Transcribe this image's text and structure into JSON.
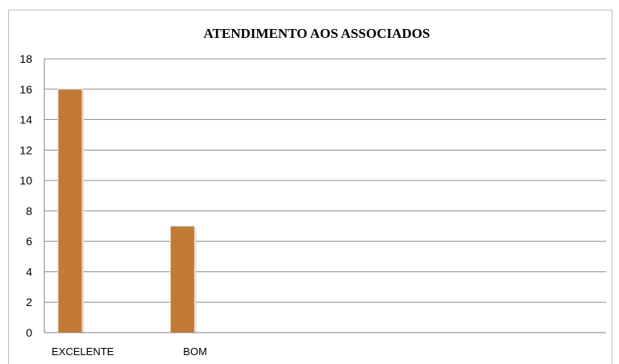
{
  "chart_data": {
    "type": "bar",
    "title": "ATENDIMENTO AOS ASSOCIADOS",
    "xlabel": "",
    "ylabel": "",
    "categories": [
      "EXCELENTE",
      "BOM",
      "",
      "",
      ""
    ],
    "values": [
      16,
      7,
      0,
      0,
      0
    ],
    "ylim": [
      0,
      18
    ],
    "yticks": [
      0,
      2,
      4,
      6,
      8,
      10,
      12,
      14,
      16,
      18
    ],
    "grid": true,
    "legend": "none",
    "bar_color": "#c27a36"
  }
}
